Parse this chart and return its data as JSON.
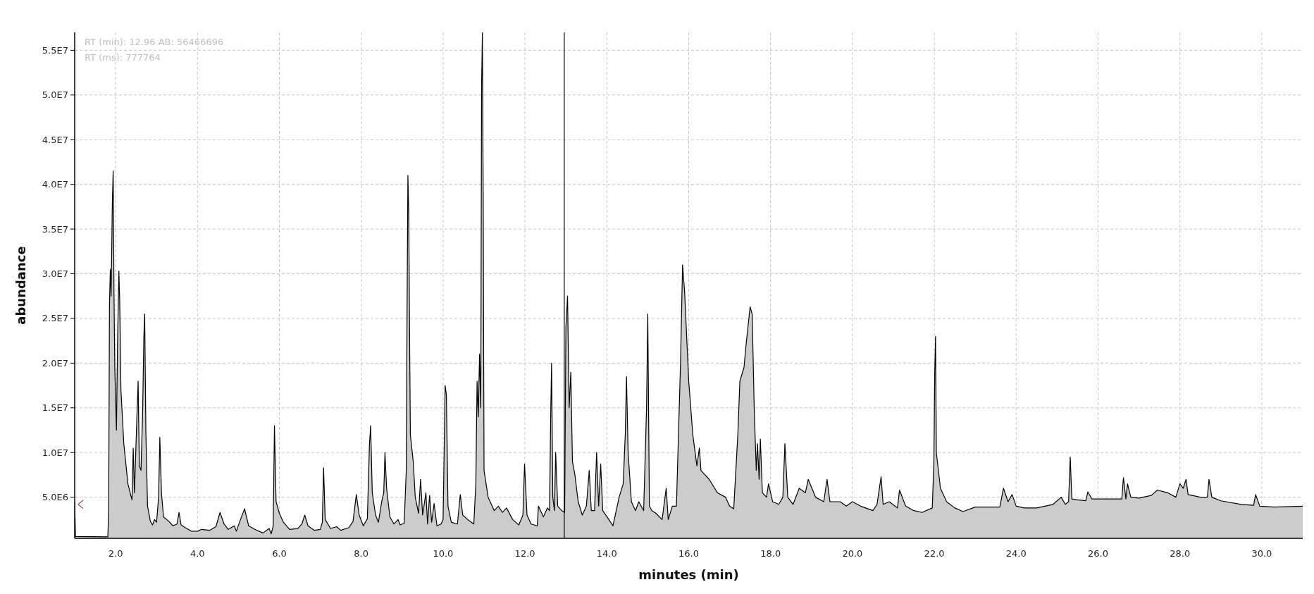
{
  "chart_data": {
    "type": "area",
    "xlabel": "minutes (min)",
    "ylabel": "abundance",
    "annotations": [
      "RT (min): 12.96 AB: 56466696",
      "RT (ms): 777764"
    ],
    "xlim": [
      1,
      31
    ],
    "ylim": [
      400000,
      57000000
    ],
    "xticks": [
      {
        "value": 2,
        "label": "2.0"
      },
      {
        "value": 4,
        "label": "4.0"
      },
      {
        "value": 6,
        "label": "6.0"
      },
      {
        "value": 8,
        "label": "8.0"
      },
      {
        "value": 10,
        "label": "10.0"
      },
      {
        "value": 12,
        "label": "12.0"
      },
      {
        "value": 14,
        "label": "14.0"
      },
      {
        "value": 16,
        "label": "16.0"
      },
      {
        "value": 18,
        "label": "18.0"
      },
      {
        "value": 20,
        "label": "20.0"
      },
      {
        "value": 22,
        "label": "22.0"
      },
      {
        "value": 24,
        "label": "24.0"
      },
      {
        "value": 26,
        "label": "26.0"
      },
      {
        "value": 28,
        "label": "28.0"
      },
      {
        "value": 30,
        "label": "30.0"
      }
    ],
    "yticks": [
      {
        "value": 5000000,
        "label": "5.0E6"
      },
      {
        "value": 10000000,
        "label": "1.0E7"
      },
      {
        "value": 15000000,
        "label": "1.5E7"
      },
      {
        "value": 20000000,
        "label": "2.0E7"
      },
      {
        "value": 25000000,
        "label": "2.5E7"
      },
      {
        "value": 30000000,
        "label": "3.0E7"
      },
      {
        "value": 35000000,
        "label": "3.5E7"
      },
      {
        "value": 40000000,
        "label": "4.0E7"
      },
      {
        "value": 45000000,
        "label": "4.5E7"
      },
      {
        "value": 50000000,
        "label": "5.0E7"
      },
      {
        "value": 55000000,
        "label": "5.5E7"
      }
    ],
    "grid": true,
    "ref_lines": [
      {
        "axis": "x",
        "value": 12.96,
        "color": "#000000"
      }
    ],
    "series": [
      {
        "color": "#000000",
        "x": [
          1.0,
          1.02,
          1.81,
          1.83,
          1.85,
          1.87,
          1.89,
          1.92,
          1.94,
          1.96,
          1.98,
          2.02,
          2.05,
          2.08,
          2.1,
          2.13,
          2.2,
          2.3,
          2.4,
          2.43,
          2.46,
          2.52,
          2.55,
          2.58,
          2.62,
          2.66,
          2.69,
          2.71,
          2.74,
          2.78,
          2.85,
          2.9,
          2.95,
          3.0,
          3.05,
          3.08,
          3.12,
          3.17,
          3.3,
          3.4,
          3.5,
          3.55,
          3.6,
          3.7,
          3.85,
          4.0,
          4.1,
          4.3,
          4.45,
          4.55,
          4.65,
          4.75,
          4.9,
          4.95,
          5.05,
          5.15,
          5.25,
          5.4,
          5.6,
          5.75,
          5.8,
          5.85,
          5.88,
          5.92,
          6.0,
          6.1,
          6.25,
          6.45,
          6.55,
          6.62,
          6.7,
          6.85,
          7.0,
          7.05,
          7.08,
          7.12,
          7.25,
          7.4,
          7.5,
          7.7,
          7.8,
          7.88,
          7.95,
          8.05,
          8.15,
          8.2,
          8.23,
          8.27,
          8.35,
          8.42,
          8.5,
          8.55,
          8.58,
          8.62,
          8.7,
          8.8,
          8.9,
          8.95,
          9.05,
          9.1,
          9.12,
          9.14,
          9.16,
          9.2,
          9.27,
          9.32,
          9.4,
          9.45,
          9.5,
          9.58,
          9.62,
          9.67,
          9.72,
          9.78,
          9.85,
          9.95,
          10.0,
          10.05,
          10.08,
          10.12,
          10.2,
          10.35,
          10.42,
          10.48,
          10.6,
          10.75,
          10.8,
          10.83,
          10.86,
          10.89,
          10.92,
          10.94,
          10.96,
          10.98,
          11.0,
          11.1,
          11.25,
          11.35,
          11.45,
          11.55,
          11.7,
          11.85,
          11.95,
          11.99,
          12.05,
          12.15,
          12.3,
          12.33,
          12.45,
          12.55,
          12.6,
          12.63,
          12.65,
          12.68,
          12.72,
          12.75,
          12.8,
          12.9,
          12.97,
          13.0,
          13.04,
          13.08,
          13.12,
          13.16,
          13.22,
          13.3,
          13.4,
          13.5,
          13.57,
          13.62,
          13.7,
          13.75,
          13.8,
          13.85,
          13.9,
          14.05,
          14.15,
          14.3,
          14.4,
          14.45,
          14.48,
          14.52,
          14.6,
          14.7,
          14.78,
          14.9,
          14.97,
          15.0,
          15.04,
          15.1,
          15.2,
          15.35,
          15.45,
          15.5,
          15.6,
          15.7,
          15.8,
          15.85,
          15.9,
          16.0,
          16.1,
          16.2,
          16.26,
          16.3,
          16.5,
          16.7,
          16.9,
          17.0,
          17.1,
          17.2,
          17.25,
          17.35,
          17.4,
          17.5,
          17.55,
          17.6,
          17.65,
          17.68,
          17.72,
          17.75,
          17.8,
          17.9,
          17.95,
          18.05,
          18.2,
          18.3,
          18.35,
          18.42,
          18.55,
          18.7,
          18.85,
          18.92,
          19.1,
          19.3,
          19.38,
          19.45,
          19.7,
          19.85,
          20.0,
          20.2,
          20.5,
          20.6,
          20.7,
          20.75,
          20.9,
          21.1,
          21.15,
          21.3,
          21.5,
          21.7,
          21.95,
          21.99,
          22.01,
          22.03,
          22.05,
          22.15,
          22.3,
          22.5,
          22.7,
          23.0,
          23.3,
          23.6,
          23.69,
          23.8,
          23.9,
          24.0,
          24.2,
          24.5,
          24.7,
          24.9,
          25.1,
          25.2,
          25.28,
          25.32,
          25.36,
          25.5,
          25.7,
          25.75,
          25.85,
          26.2,
          26.58,
          26.62,
          26.68,
          26.72,
          26.8,
          27.0,
          27.3,
          27.45,
          27.7,
          27.9,
          28.0,
          28.08,
          28.15,
          28.2,
          28.5,
          28.67,
          28.71,
          28.78,
          29.0,
          29.5,
          29.8,
          29.85,
          29.95,
          30.3,
          31.0
        ],
        "values": [
          4500000.0,
          600000.0,
          560000.0,
          3500000.0,
          26500000.0,
          30500000.0,
          27500000.0,
          38000000.0,
          41500000.0,
          28000000.0,
          19500000.0,
          12500000.0,
          23000000.0,
          30300000.0,
          27000000.0,
          17000000.0,
          11000000.0,
          6500000.0,
          4700000.0,
          10500000.0,
          5500000.0,
          14000000.0,
          18000000.0,
          8500000.0,
          8000000.0,
          14500000.0,
          23000000.0,
          25500000.0,
          12000000.0,
          4000000.0,
          2300000.0,
          1900000.0,
          2500000.0,
          2200000.0,
          5000000.0,
          11700000.0,
          5500000.0,
          2800000.0,
          2300000.0,
          1800000.0,
          2000000.0,
          3300000.0,
          1900000.0,
          1600000.0,
          1200000.0,
          1200000.0,
          1400000.0,
          1300000.0,
          1700000.0,
          3300000.0,
          2000000.0,
          1400000.0,
          1800000.0,
          1200000.0,
          2500000.0,
          3700000.0,
          1800000.0,
          1400000.0,
          1000000.0,
          1500000.0,
          900000.0,
          1800000.0,
          13000000.0,
          4500000.0,
          3200000.0,
          2200000.0,
          1400000.0,
          1500000.0,
          2000000.0,
          3000000.0,
          1800000.0,
          1300000.0,
          1400000.0,
          2200000.0,
          8300000.0,
          2500000.0,
          1500000.0,
          1700000.0,
          1300000.0,
          1600000.0,
          2300000.0,
          5300000.0,
          3000000.0,
          1800000.0,
          2600000.0,
          10800000.0,
          13000000.0,
          5500000.0,
          3000000.0,
          2200000.0,
          4500000.0,
          5500000.0,
          10000000.0,
          6000000.0,
          2800000.0,
          2000000.0,
          2500000.0,
          1900000.0,
          2100000.0,
          8000000.0,
          26000000.0,
          41000000.0,
          37000000.0,
          12000000.0,
          9000000.0,
          5000000.0,
          3200000.0,
          7000000.0,
          3000000.0,
          5500000.0,
          2000000.0,
          5200000.0,
          2200000.0,
          4300000.0,
          1800000.0,
          2000000.0,
          2500000.0,
          17500000.0,
          16500000.0,
          4000000.0,
          2200000.0,
          2000000.0,
          5300000.0,
          3000000.0,
          2500000.0,
          2000000.0,
          6500000.0,
          18000000.0,
          14000000.0,
          21000000.0,
          15000000.0,
          51000000.0,
          57000000.0,
          38000000.0,
          8000000.0,
          5000000.0,
          3500000.0,
          4000000.0,
          3300000.0,
          3800000.0,
          2500000.0,
          1900000.0,
          3000000.0,
          8700000.0,
          3000000.0,
          2000000.0,
          1800000.0,
          4000000.0,
          2800000.0,
          3800000.0,
          3500000.0,
          14500000.0,
          20000000.0,
          5000000.0,
          3500000.0,
          10000000.0,
          4000000.0,
          3500000.0,
          3300000.0,
          24000000.0,
          27500000.0,
          15000000.0,
          19000000.0,
          9000000.0,
          7500000.0,
          4500000.0,
          3000000.0,
          4000000.0,
          8000000.0,
          3500000.0,
          3500000.0,
          10000000.0,
          4000000.0,
          8700000.0,
          3500000.0,
          2500000.0,
          1800000.0,
          5000000.0,
          6500000.0,
          12000000.0,
          18500000.0,
          10000000.0,
          4500000.0,
          3500000.0,
          4500000.0,
          3500000.0,
          15000000.0,
          25500000.0,
          4000000.0,
          3500000.0,
          3200000.0,
          2500000.0,
          6000000.0,
          2500000.0,
          4000000.0,
          4000000.0,
          20000000.0,
          31000000.0,
          28000000.0,
          18000000.0,
          12000000.0,
          8500000.0,
          10500000.0,
          8000000.0,
          7000000.0,
          5500000.0,
          5000000.0,
          4000000.0,
          3700000.0,
          12000000.0,
          18000000.0,
          19500000.0,
          22000000.0,
          26300000.0,
          25500000.0,
          15000000.0,
          8000000.0,
          11000000.0,
          7000000.0,
          11500000.0,
          5500000.0,
          5000000.0,
          6500000.0,
          4500000.0,
          4200000.0,
          5000000.0,
          11000000.0,
          5000000.0,
          4200000.0,
          6000000.0,
          5500000.0,
          7000000.0,
          5000000.0,
          4500000.0,
          7000000.0,
          4500000.0,
          4500000.0,
          4000000.0,
          4500000.0,
          4000000.0,
          3500000.0,
          4200000.0,
          7300000.0,
          4200000.0,
          4500000.0,
          3800000.0,
          5800000.0,
          4000000.0,
          3500000.0,
          3300000.0,
          3800000.0,
          9000000.0,
          19000000.0,
          23000000.0,
          10000000.0,
          6000000.0,
          4500000.0,
          3800000.0,
          3400000.0,
          3900000.0,
          3900000.0,
          3900000.0,
          6000000.0,
          4500000.0,
          5300000.0,
          4000000.0,
          3800000.0,
          3800000.0,
          4000000.0,
          4200000.0,
          5000000.0,
          4200000.0,
          4500000.0,
          9500000.0,
          4800000.0,
          4700000.0,
          4600000.0,
          5600000.0,
          4800000.0,
          4800000.0,
          4800000.0,
          7200000.0,
          4800000.0,
          6500000.0,
          5000000.0,
          4900000.0,
          5200000.0,
          5800000.0,
          5500000.0,
          5000000.0,
          6500000.0,
          6000000.0,
          7000000.0,
          5300000.0,
          5000000.0,
          5000000.0,
          7000000.0,
          5000000.0,
          4600000.0,
          4200000.0,
          4100000.0,
          5300000.0,
          4000000.0,
          3900000.0,
          4000000.0
        ]
      }
    ]
  }
}
